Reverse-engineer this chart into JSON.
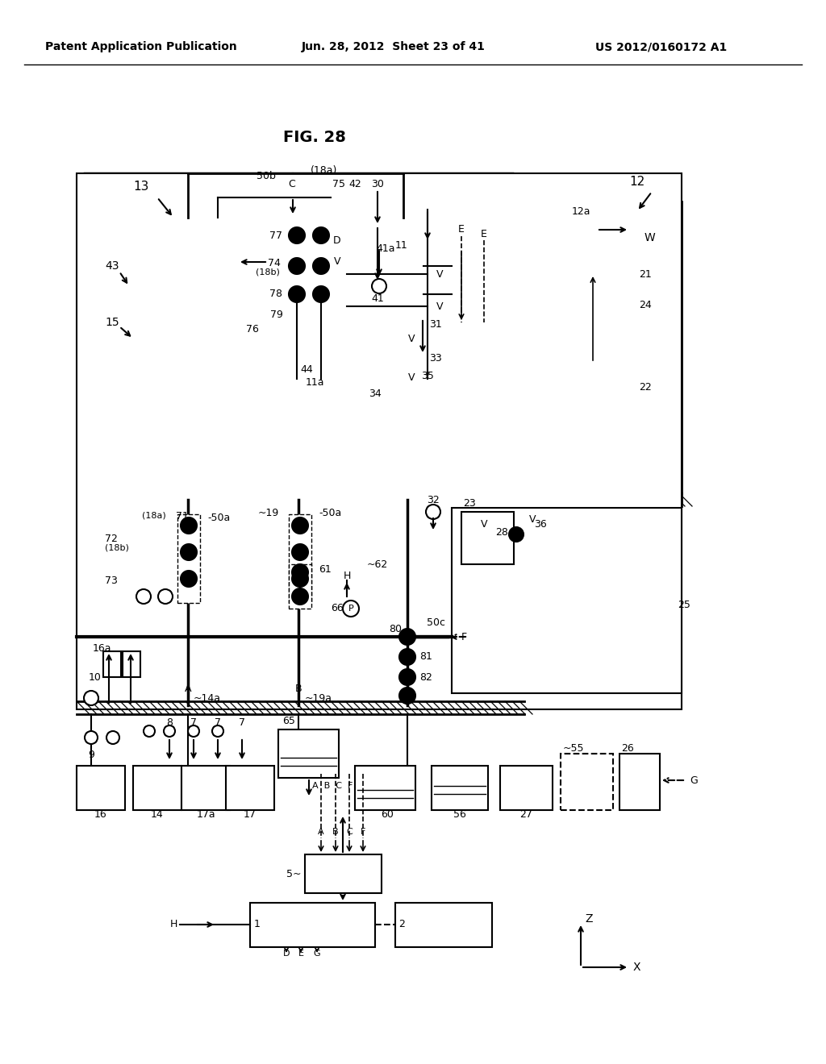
{
  "title": "FIG. 28",
  "header_left": "Patent Application Publication",
  "header_center": "Jun. 28, 2012  Sheet 23 of 41",
  "header_right": "US 2012/0160172 A1",
  "bg_color": "#ffffff",
  "fig_width": 10.24,
  "fig_height": 13.2
}
